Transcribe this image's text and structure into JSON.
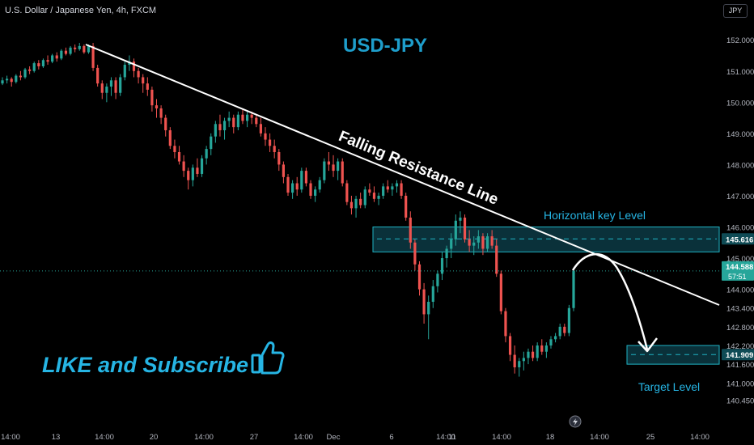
{
  "header": {
    "symbol_info": "U.S. Dollar / Japanese Yen, 4h, FXCM",
    "currency_button": "JPY"
  },
  "colors": {
    "background": "#000000",
    "up_candle": "#26a69a",
    "down_candle": "#ef5350",
    "title": "#1e9ecb",
    "annotation": "#26b5e4",
    "zone_fill": "#0c3a44",
    "zone_border": "#1fb3c4",
    "trendline": "#ffffff"
  },
  "chart_data": {
    "type": "candlestick",
    "title": "USD-JPY",
    "ylim": [
      140.2,
      152.4
    ],
    "y_ticks": [
      "152.000",
      "151.000",
      "150.000",
      "149.000",
      "148.000",
      "147.000",
      "146.000",
      "145.000",
      "144.000",
      "143.400",
      "142.800",
      "142.200",
      "141.600",
      "141.000",
      "140.450"
    ],
    "x_ticks": [
      "14:00",
      "13",
      "14:00",
      "20",
      "14:00",
      "27",
      "14:00",
      "Dec",
      "6",
      "14:00",
      "11",
      "14:00",
      "18",
      "14:00",
      "25",
      "14:00"
    ],
    "price_labels": {
      "current": {
        "value": "144.588",
        "countdown": "57:51"
      },
      "zone": "145.616",
      "target": "141.909"
    },
    "key_level_zone": {
      "low": 145.2,
      "high": 146.0,
      "mid": 145.616,
      "label": "Horizontal key Level"
    },
    "target_zone": {
      "low": 141.6,
      "high": 142.2,
      "mid": 141.909,
      "label": "Target Level"
    },
    "trendline": {
      "label": "Falling Resistance Line"
    },
    "promo_text": "LIKE and Subscribe",
    "candles": [
      [
        150.6,
        150.8,
        150.55,
        150.7
      ],
      [
        150.7,
        150.85,
        150.6,
        150.75
      ],
      [
        150.75,
        150.8,
        150.5,
        150.65
      ],
      [
        150.65,
        150.9,
        150.6,
        150.85
      ],
      [
        150.85,
        151.0,
        150.7,
        150.8
      ],
      [
        150.8,
        151.1,
        150.75,
        151.05
      ],
      [
        151.05,
        151.15,
        150.9,
        151.0
      ],
      [
        151.0,
        151.3,
        150.95,
        151.25
      ],
      [
        151.25,
        151.35,
        151.05,
        151.15
      ],
      [
        151.15,
        151.4,
        151.1,
        151.35
      ],
      [
        151.35,
        151.5,
        151.2,
        151.3
      ],
      [
        151.3,
        151.55,
        151.25,
        151.5
      ],
      [
        151.5,
        151.6,
        151.3,
        151.4
      ],
      [
        151.4,
        151.7,
        151.35,
        151.65
      ],
      [
        151.65,
        151.75,
        151.5,
        151.55
      ],
      [
        151.55,
        151.8,
        151.5,
        151.75
      ],
      [
        151.75,
        151.85,
        151.6,
        151.7
      ],
      [
        151.7,
        151.9,
        151.65,
        151.8
      ],
      [
        151.8,
        151.85,
        151.55,
        151.6
      ],
      [
        151.6,
        151.85,
        151.55,
        151.8
      ],
      [
        151.8,
        151.9,
        151.0,
        151.1
      ],
      [
        151.1,
        151.2,
        150.5,
        150.6
      ],
      [
        150.6,
        150.7,
        150.1,
        150.3
      ],
      [
        150.3,
        150.6,
        150.0,
        150.5
      ],
      [
        150.5,
        150.8,
        150.2,
        150.7
      ],
      [
        150.7,
        150.8,
        150.1,
        150.3
      ],
      [
        150.3,
        150.9,
        150.2,
        150.8
      ],
      [
        150.8,
        151.3,
        150.7,
        151.2
      ],
      [
        151.2,
        151.5,
        151.0,
        151.3
      ],
      [
        151.3,
        151.4,
        150.8,
        151.0
      ],
      [
        151.0,
        151.1,
        150.6,
        150.8
      ],
      [
        150.8,
        150.9,
        150.3,
        150.6
      ],
      [
        150.6,
        150.8,
        150.2,
        150.4
      ],
      [
        150.4,
        150.5,
        149.7,
        149.9
      ],
      [
        149.9,
        150.1,
        149.5,
        149.8
      ],
      [
        149.8,
        149.9,
        149.3,
        149.5
      ],
      [
        149.5,
        149.6,
        148.9,
        149.1
      ],
      [
        149.1,
        149.2,
        148.5,
        148.6
      ],
      [
        148.6,
        148.8,
        148.2,
        148.4
      ],
      [
        148.4,
        148.6,
        148.0,
        148.1
      ],
      [
        148.1,
        148.3,
        147.6,
        147.8
      ],
      [
        147.8,
        147.9,
        147.2,
        147.5
      ],
      [
        147.5,
        148.0,
        147.3,
        147.9
      ],
      [
        147.9,
        148.2,
        147.6,
        147.7
      ],
      [
        147.7,
        148.3,
        147.6,
        148.2
      ],
      [
        148.2,
        148.6,
        148.0,
        148.5
      ],
      [
        148.5,
        149.0,
        148.3,
        148.9
      ],
      [
        148.9,
        149.4,
        148.7,
        149.3
      ],
      [
        149.3,
        149.6,
        148.9,
        149.1
      ],
      [
        149.1,
        149.5,
        148.8,
        149.4
      ],
      [
        149.4,
        149.7,
        149.2,
        149.5
      ],
      [
        149.5,
        149.6,
        149.0,
        149.2
      ],
      [
        149.2,
        149.7,
        149.1,
        149.6
      ],
      [
        149.6,
        149.8,
        149.3,
        149.4
      ],
      [
        149.4,
        149.7,
        149.2,
        149.6
      ],
      [
        149.6,
        149.7,
        149.3,
        149.5
      ],
      [
        149.5,
        149.6,
        149.2,
        149.3
      ],
      [
        149.3,
        149.5,
        148.9,
        149.0
      ],
      [
        149.0,
        149.2,
        148.6,
        148.8
      ],
      [
        148.8,
        149.0,
        148.4,
        148.6
      ],
      [
        148.6,
        148.8,
        148.2,
        148.4
      ],
      [
        148.4,
        148.5,
        147.8,
        148.0
      ],
      [
        148.0,
        148.1,
        147.4,
        147.6
      ],
      [
        147.6,
        147.7,
        147.0,
        147.1
      ],
      [
        147.1,
        147.5,
        146.9,
        147.4
      ],
      [
        147.4,
        147.6,
        147.0,
        147.2
      ],
      [
        147.2,
        147.9,
        147.1,
        147.8
      ],
      [
        147.8,
        147.9,
        147.3,
        147.4
      ],
      [
        147.4,
        147.5,
        146.9,
        147.0
      ],
      [
        147.0,
        147.3,
        146.8,
        147.2
      ],
      [
        147.2,
        147.6,
        147.1,
        147.5
      ],
      [
        147.5,
        148.2,
        147.4,
        148.1
      ],
      [
        148.1,
        148.4,
        147.8,
        148.0
      ],
      [
        148.0,
        148.3,
        147.6,
        147.8
      ],
      [
        147.8,
        148.2,
        147.5,
        148.1
      ],
      [
        148.1,
        148.2,
        147.3,
        147.4
      ],
      [
        147.4,
        147.5,
        146.7,
        146.8
      ],
      [
        146.8,
        147.0,
        146.4,
        146.6
      ],
      [
        146.6,
        147.0,
        146.3,
        146.9
      ],
      [
        146.9,
        147.1,
        146.6,
        146.7
      ],
      [
        146.7,
        147.3,
        146.6,
        147.2
      ],
      [
        147.2,
        147.4,
        147.0,
        147.1
      ],
      [
        147.1,
        147.3,
        146.8,
        146.9
      ],
      [
        146.9,
        147.1,
        146.7,
        147.0
      ],
      [
        147.0,
        147.4,
        146.9,
        147.3
      ],
      [
        147.3,
        147.5,
        147.1,
        147.2
      ],
      [
        147.2,
        147.4,
        147.0,
        147.3
      ],
      [
        147.3,
        147.5,
        147.1,
        147.4
      ],
      [
        147.4,
        147.5,
        146.9,
        147.0
      ],
      [
        147.0,
        147.1,
        146.2,
        146.3
      ],
      [
        146.3,
        146.5,
        145.3,
        145.5
      ],
      [
        145.5,
        145.6,
        144.6,
        144.8
      ],
      [
        144.8,
        144.9,
        143.8,
        144.0
      ],
      [
        144.0,
        144.2,
        142.9,
        143.2
      ],
      [
        143.2,
        143.8,
        142.4,
        143.6
      ],
      [
        143.6,
        144.3,
        143.4,
        144.1
      ],
      [
        144.1,
        144.6,
        143.9,
        144.5
      ],
      [
        144.5,
        145.2,
        144.3,
        145.0
      ],
      [
        145.0,
        145.4,
        144.7,
        145.3
      ],
      [
        145.3,
        145.8,
        145.0,
        145.6
      ],
      [
        145.6,
        146.4,
        145.4,
        146.2
      ],
      [
        146.2,
        146.5,
        145.8,
        146.3
      ],
      [
        146.3,
        146.4,
        145.5,
        145.6
      ],
      [
        145.6,
        145.9,
        145.2,
        145.4
      ],
      [
        145.4,
        145.7,
        145.1,
        145.5
      ],
      [
        145.5,
        145.9,
        145.3,
        145.7
      ],
      [
        145.7,
        145.8,
        145.1,
        145.3
      ],
      [
        145.3,
        145.8,
        145.2,
        145.7
      ],
      [
        145.7,
        145.9,
        145.3,
        145.4
      ],
      [
        145.4,
        145.6,
        144.4,
        144.5
      ],
      [
        144.5,
        144.6,
        143.2,
        143.3
      ],
      [
        143.3,
        143.4,
        142.3,
        142.5
      ],
      [
        142.5,
        142.6,
        141.7,
        141.9
      ],
      [
        141.9,
        142.2,
        141.3,
        141.5
      ],
      [
        141.5,
        141.8,
        141.2,
        141.7
      ],
      [
        141.7,
        142.0,
        141.4,
        141.8
      ],
      [
        141.8,
        142.1,
        141.6,
        142.0
      ],
      [
        142.0,
        142.2,
        141.7,
        141.8
      ],
      [
        141.8,
        142.3,
        141.7,
        142.2
      ],
      [
        142.2,
        142.4,
        141.9,
        142.0
      ],
      [
        142.0,
        142.3,
        141.8,
        142.2
      ],
      [
        142.2,
        142.5,
        142.1,
        142.4
      ],
      [
        142.4,
        142.6,
        142.3,
        142.5
      ],
      [
        142.5,
        142.9,
        142.4,
        142.8
      ],
      [
        142.8,
        142.9,
        142.5,
        142.6
      ],
      [
        142.6,
        143.5,
        142.5,
        143.4
      ],
      [
        143.4,
        144.7,
        143.3,
        144.6
      ]
    ]
  }
}
